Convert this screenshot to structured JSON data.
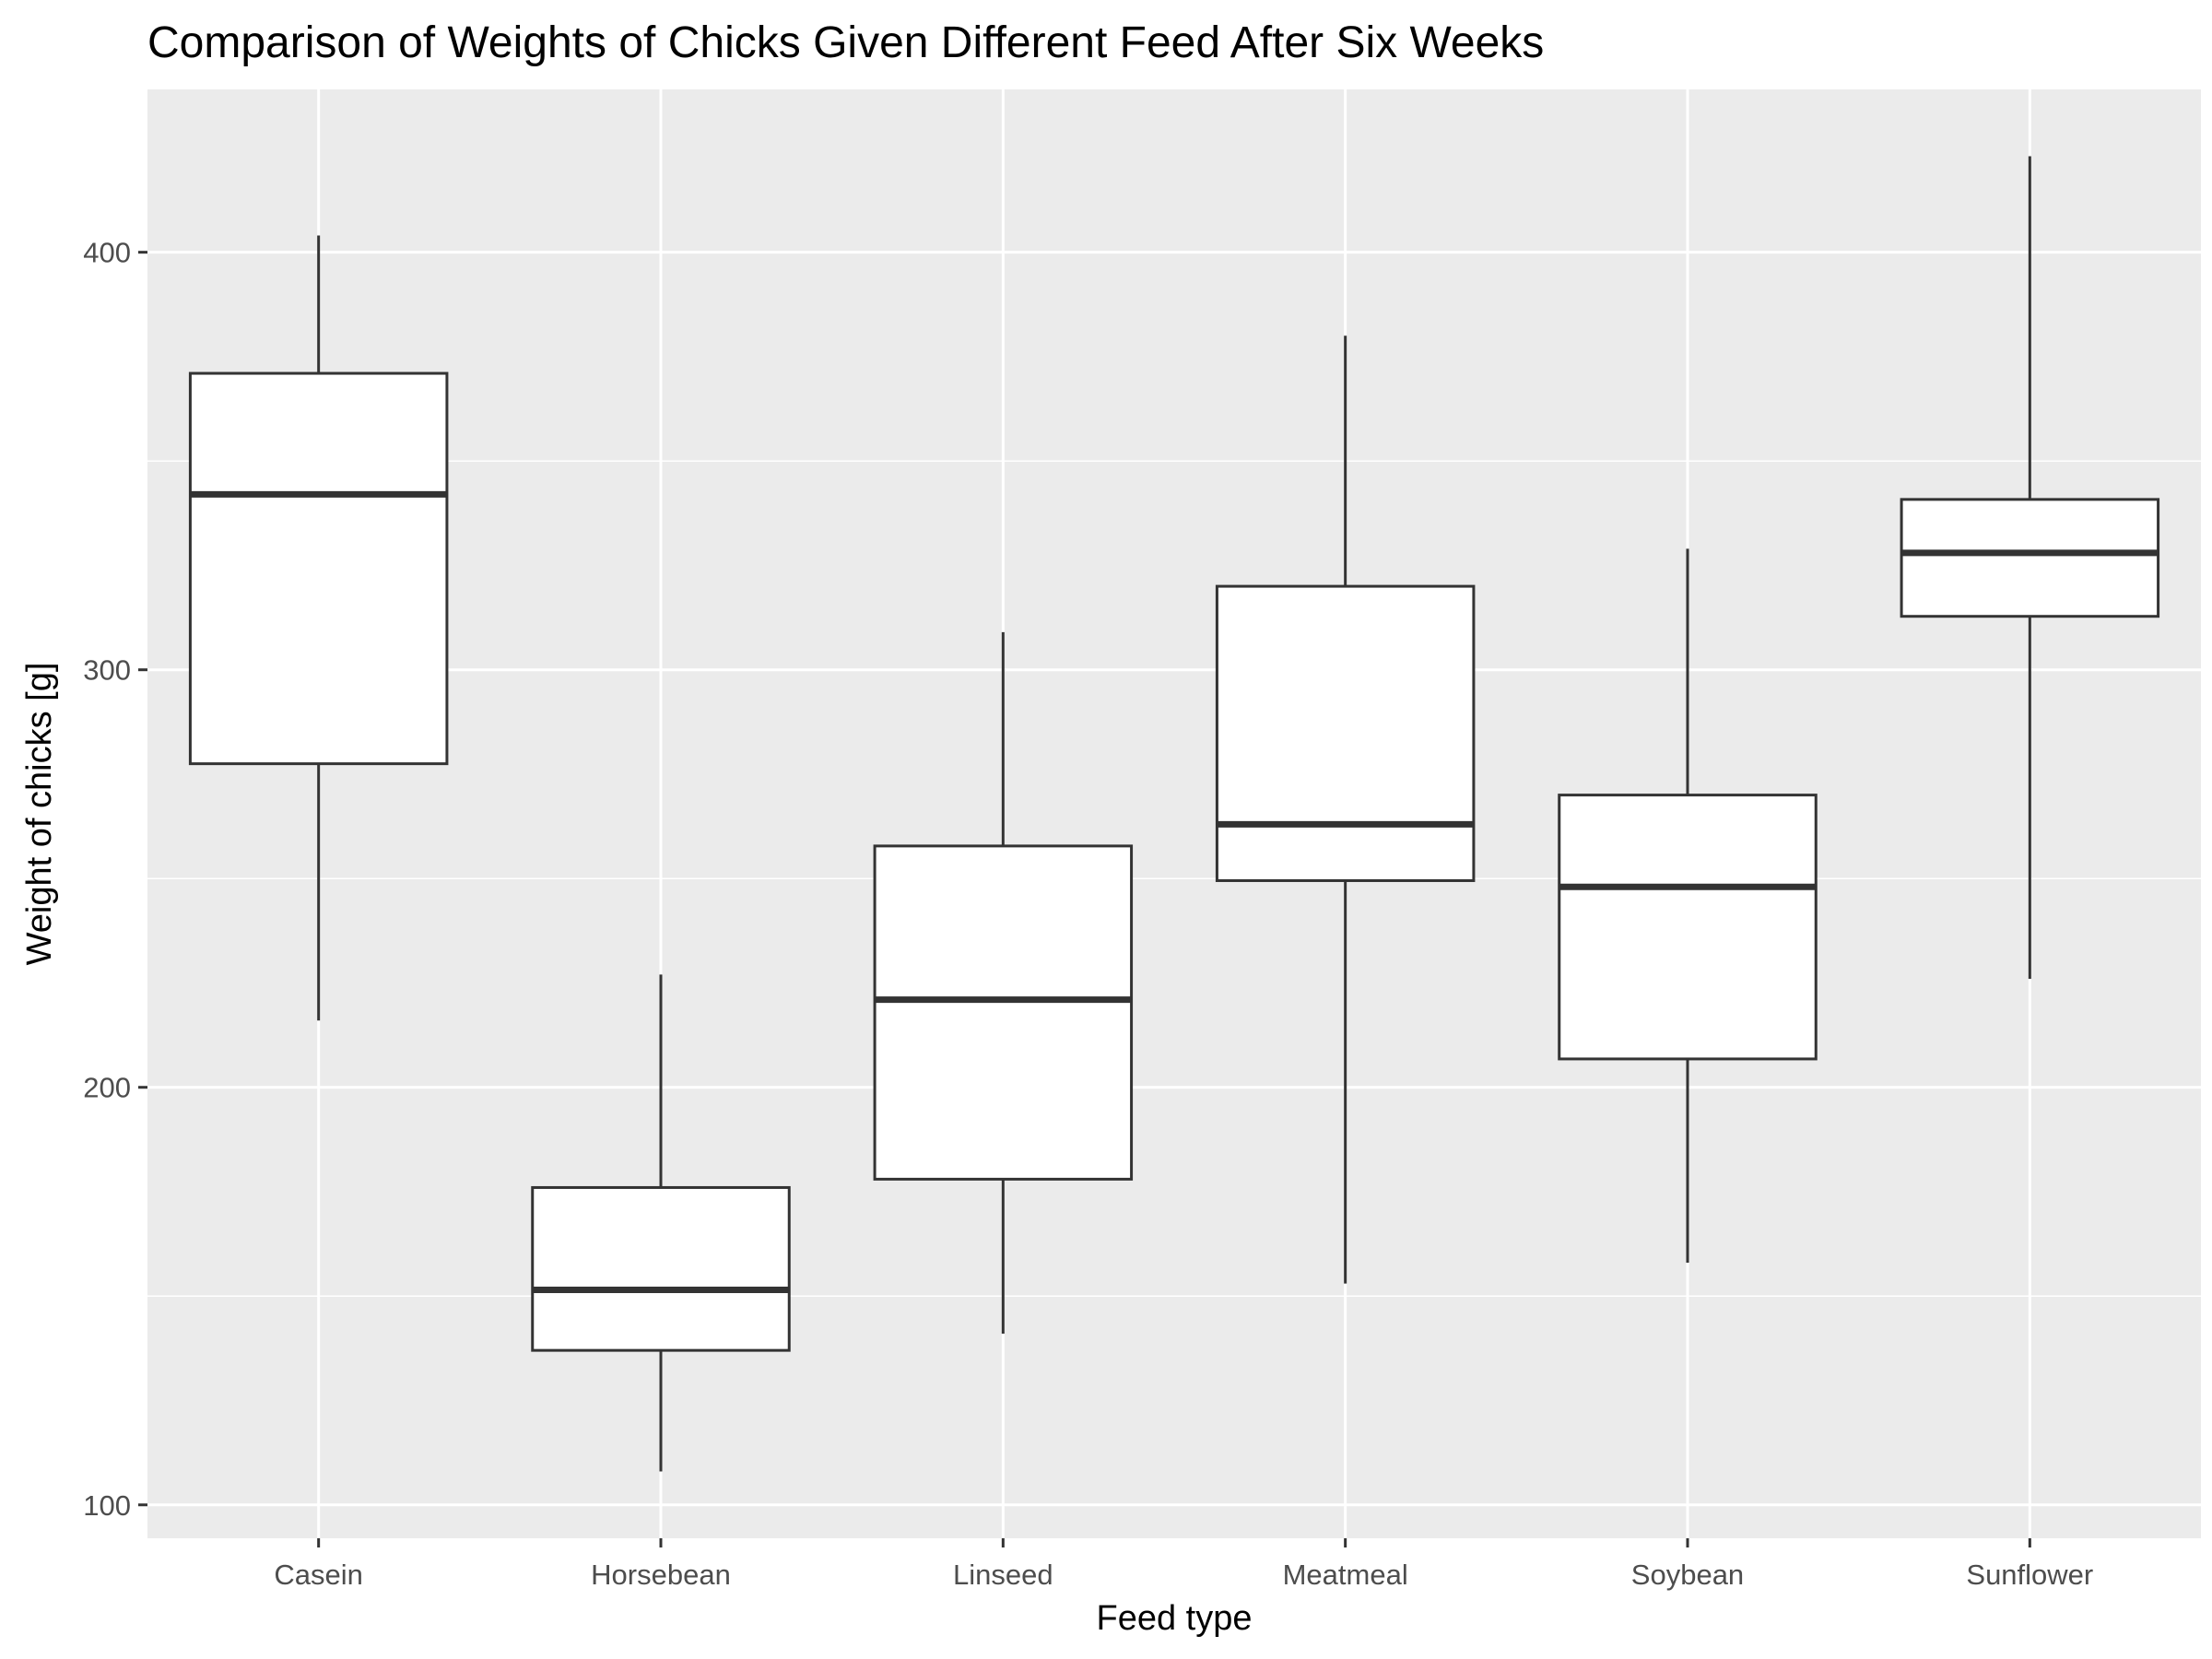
{
  "chart_data": {
    "type": "boxplot",
    "title": "Comparison of Weights of Chicks Given Different Feed After Six Weeks",
    "xlabel": "Feed type",
    "ylabel": "Weight of chicks [g]",
    "ylim": [
      92,
      439
    ],
    "y_ticks": [
      100,
      200,
      300,
      400
    ],
    "y_tick_labels": [
      "100",
      "200",
      "300",
      "400"
    ],
    "y_minor_ticks": [
      150,
      250,
      350
    ],
    "grid": true,
    "categories": [
      "Casein",
      "Horsebean",
      "Linseed",
      "Meatmeal",
      "Soybean",
      "Sunflower"
    ],
    "boxes": [
      {
        "category": "Casein",
        "whisker_low": 216,
        "q1": 277.5,
        "median": 342,
        "q3": 371,
        "whisker_high": 404
      },
      {
        "category": "Horsebean",
        "whisker_low": 108,
        "q1": 137,
        "median": 151.5,
        "q3": 176,
        "whisker_high": 227
      },
      {
        "category": "Linseed",
        "whisker_low": 141,
        "q1": 178,
        "median": 221,
        "q3": 257.8,
        "whisker_high": 309
      },
      {
        "category": "Meatmeal",
        "whisker_low": 153,
        "q1": 249.5,
        "median": 263,
        "q3": 320,
        "whisker_high": 380
      },
      {
        "category": "Soybean",
        "whisker_low": 158,
        "q1": 206.8,
        "median": 248,
        "q3": 270,
        "whisker_high": 329
      },
      {
        "category": "Sunflower",
        "whisker_low": 226,
        "q1": 312.8,
        "median": 328,
        "q3": 340.8,
        "whisker_high": 423
      }
    ],
    "colors": {
      "panel_background": "#ebebeb",
      "grid": "#ffffff",
      "box_fill": "#ffffff",
      "box_line": "#333333",
      "tick_label": "#4d4d4d",
      "title_text": "#000000"
    }
  }
}
